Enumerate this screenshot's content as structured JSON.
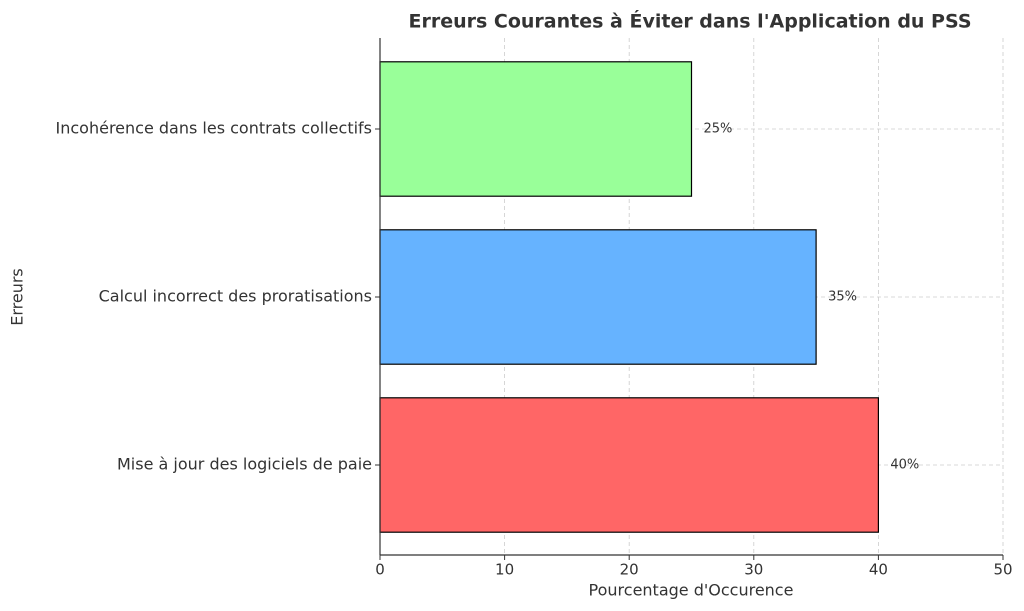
{
  "chart_data": {
    "type": "barh",
    "title": "Erreurs Courantes à Éviter dans l'Application du PSS",
    "x_label": "Pourcentage d'Occurence",
    "y_label": "Erreurs",
    "categories": [
      "Mise à jour des logiciels de paie",
      "Calcul incorrect des proratisations",
      "Incohérence dans les contrats collectifs"
    ],
    "values": [
      40,
      35,
      25
    ],
    "value_labels": [
      "40%",
      "35%",
      "25%"
    ],
    "colors": [
      "#ff6666",
      "#66b3ff",
      "#99ff99"
    ],
    "xlim": [
      0,
      50
    ],
    "xticks": [
      0,
      10,
      20,
      30,
      40,
      50
    ],
    "grid": true
  }
}
